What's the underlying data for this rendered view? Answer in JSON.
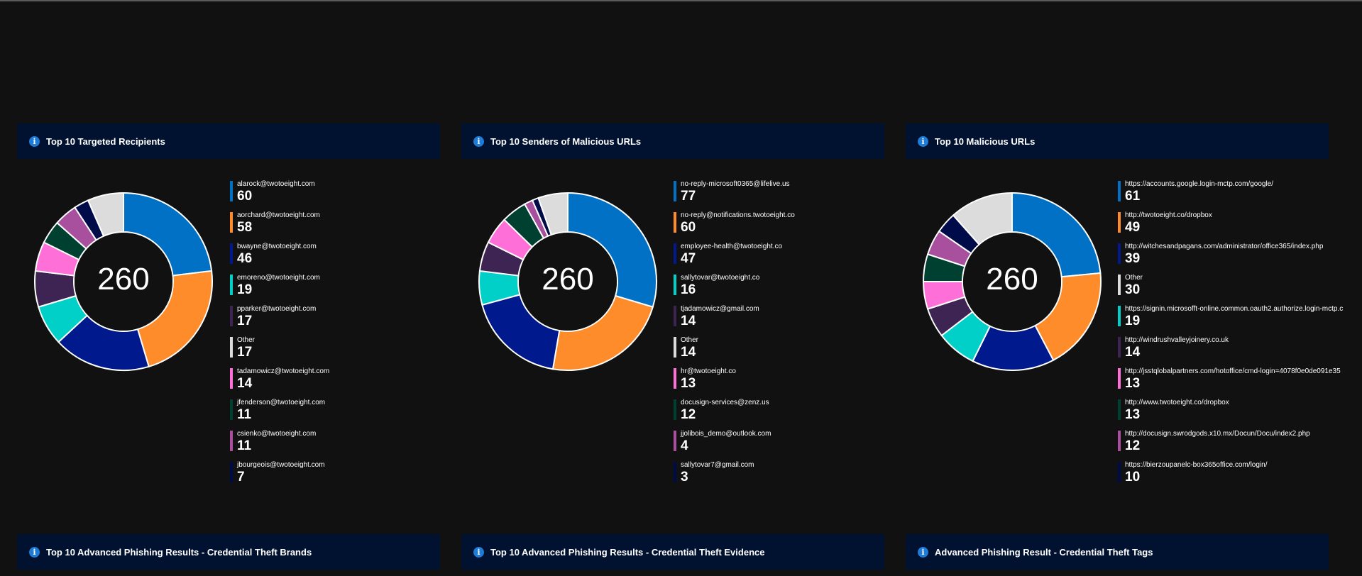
{
  "colors": {
    "background": "#111111",
    "header_bg": "#011231",
    "info_icon": "#1e7bd6",
    "series": [
      "#0071c5",
      "#ff8c2a",
      "#001a8e",
      "#00d0c8",
      "#3e2452",
      "#dcdcdc",
      "#ff6fd8",
      "#004030",
      "#a8509e",
      "#000c4a"
    ]
  },
  "panels": [
    {
      "title": "Top 10 Targeted Recipients",
      "total": "260",
      "items": [
        {
          "label": "alarock@twotoeight.com",
          "value": 60,
          "color": "#0071c5"
        },
        {
          "label": "aorchard@twotoeight.com",
          "value": 58,
          "color": "#ff8c2a"
        },
        {
          "label": "bwayne@twotoeight.com",
          "value": 46,
          "color": "#001a8e"
        },
        {
          "label": "emoreno@twotoeight.com",
          "value": 19,
          "color": "#00d0c8"
        },
        {
          "label": "pparker@twotoeight.com",
          "value": 17,
          "color": "#3e2452"
        },
        {
          "label": "Other",
          "value": 17,
          "color": "#dcdcdc"
        },
        {
          "label": "tadamowicz@twotoeight.com",
          "value": 14,
          "color": "#ff6fd8"
        },
        {
          "label": "jfenderson@twotoeight.com",
          "value": 11,
          "color": "#004030"
        },
        {
          "label": "csienko@twotoeight.com",
          "value": 11,
          "color": "#a8509e"
        },
        {
          "label": "jbourgeois@twotoeight.com",
          "value": 7,
          "color": "#000c4a"
        }
      ],
      "slice_order": [
        0,
        1,
        2,
        3,
        4,
        6,
        7,
        8,
        9,
        5
      ]
    },
    {
      "title": "Top 10 Senders of Malicious URLs",
      "total": "260",
      "items": [
        {
          "label": "no-reply-microsoft0365@lifelive.us",
          "value": 77,
          "color": "#0071c5"
        },
        {
          "label": "no-reply@notifications.twotoeight.co",
          "value": 60,
          "color": "#ff8c2a"
        },
        {
          "label": "employee-health@twotoeight.co",
          "value": 47,
          "color": "#001a8e"
        },
        {
          "label": "sallytovar@twotoeight.co",
          "value": 16,
          "color": "#00d0c8"
        },
        {
          "label": "tjadamowicz@gmail.com",
          "value": 14,
          "color": "#3e2452"
        },
        {
          "label": "Other",
          "value": 14,
          "color": "#dcdcdc"
        },
        {
          "label": "hr@twotoeight.co",
          "value": 13,
          "color": "#ff6fd8"
        },
        {
          "label": "docusign-services@zenz.us",
          "value": 12,
          "color": "#004030"
        },
        {
          "label": "jjolibois_demo@outlook.com",
          "value": 4,
          "color": "#a8509e"
        },
        {
          "label": "sallytovar7@gmail.com",
          "value": 3,
          "color": "#000c4a"
        }
      ],
      "slice_order": [
        0,
        1,
        2,
        3,
        4,
        6,
        7,
        8,
        9,
        5
      ]
    },
    {
      "title": "Top 10 Malicious URLs",
      "total": "260",
      "items": [
        {
          "label": "https://accounts.google.login-mctp.com/google/",
          "value": 61,
          "color": "#0071c5"
        },
        {
          "label": "http://twotoeight.co/dropbox",
          "value": 49,
          "color": "#ff8c2a"
        },
        {
          "label": "http://witchesandpagans.com/administrator/office365/index.php",
          "value": 39,
          "color": "#001a8e"
        },
        {
          "label": "Other",
          "value": 30,
          "color": "#dcdcdc"
        },
        {
          "label": "https://signin.microsofft-online.common.oauth2.authorize.login-mctp.c",
          "value": 19,
          "color": "#00d0c8"
        },
        {
          "label": "http://windrushvalleyjoinery.co.uk",
          "value": 14,
          "color": "#3e2452"
        },
        {
          "label": "http://jsstqlobalpartners.com/hotoffice/cmd-login=4078f0e0de091e35",
          "value": 13,
          "color": "#ff6fd8"
        },
        {
          "label": "http://www.twotoeight.co/dropbox",
          "value": 13,
          "color": "#004030"
        },
        {
          "label": "http://docusign.swrodgods.x10.mx/Docun/Docu/index2.php",
          "value": 12,
          "color": "#a8509e"
        },
        {
          "label": "https://bierzoupanelc-box365office.com/login/",
          "value": 10,
          "color": "#000c4a"
        }
      ],
      "slice_order": [
        0,
        1,
        2,
        4,
        5,
        6,
        7,
        8,
        9,
        3
      ]
    }
  ],
  "bottom_headers": [
    {
      "title": "Top 10 Advanced Phishing Results - Credential Theft Brands"
    },
    {
      "title": "Top 10 Advanced Phishing Results - Credential Theft Evidence"
    },
    {
      "title": "Advanced Phishing Result - Credential Theft Tags"
    }
  ]
}
